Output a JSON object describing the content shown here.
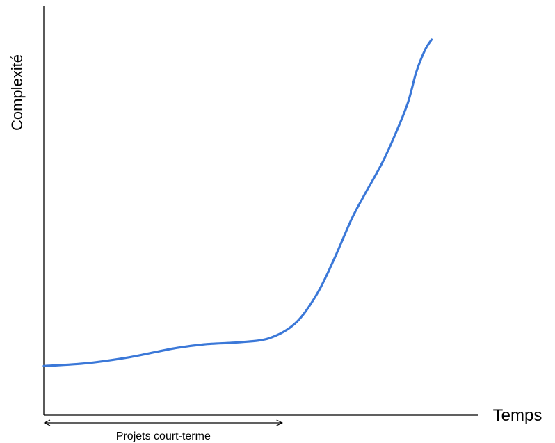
{
  "chart_data": {
    "type": "line",
    "title": "",
    "xlabel": "Temps",
    "ylabel": "Complexité",
    "xlim": [
      0,
      100
    ],
    "ylim": [
      0,
      100
    ],
    "grid": false,
    "ticks": false,
    "series": [
      {
        "color": "#3b78d8",
        "x": [
          0,
          10,
          20,
          30,
          37,
          45,
          52,
          58,
          63,
          67,
          71,
          74,
          78,
          81,
          84,
          86,
          88,
          89.5
        ],
        "y": [
          12,
          12.7,
          14.2,
          16.3,
          17.3,
          17.8,
          18.8,
          22.4,
          29.5,
          38.1,
          47.8,
          53.8,
          61.4,
          68.3,
          76.2,
          83.9,
          89.2,
          91.7
        ]
      }
    ],
    "annotations": [
      {
        "text": "Projets court-terme",
        "kind": "double-arrow",
        "x_range": [
          0,
          55
        ]
      }
    ]
  }
}
